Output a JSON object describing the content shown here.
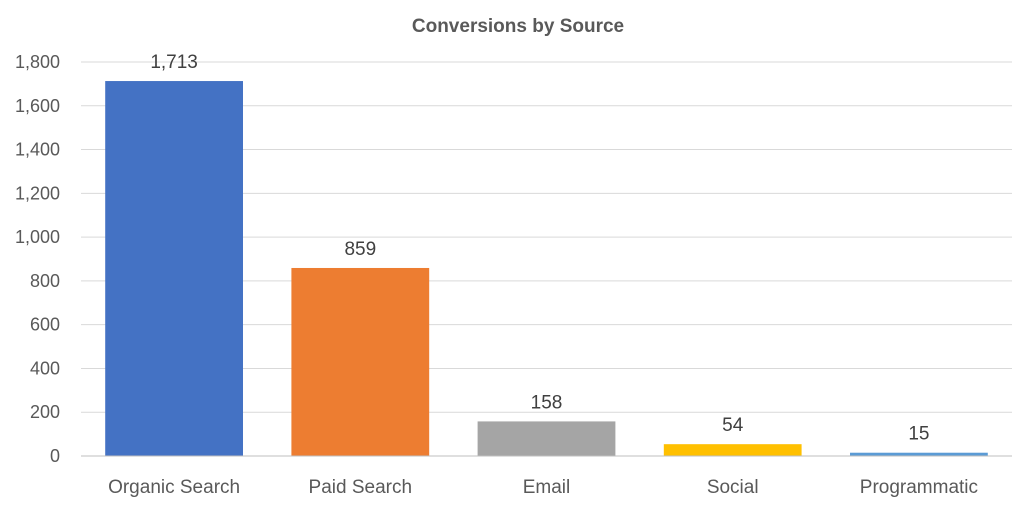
{
  "chart_data": {
    "type": "bar",
    "title": "Conversions by Source",
    "xlabel": "",
    "ylabel": "",
    "categories": [
      "Organic Search",
      "Paid Search",
      "Email",
      "Social",
      "Programmatic"
    ],
    "values": [
      1713,
      859,
      158,
      54,
      15
    ],
    "value_labels": [
      "1,713",
      "859",
      "158",
      "54",
      "15"
    ],
    "colors": [
      "#4472c4",
      "#ed7d31",
      "#a5a5a5",
      "#ffc000",
      "#5b9bd5"
    ],
    "ylim": [
      0,
      1800
    ],
    "yticks": [
      0,
      200,
      400,
      600,
      800,
      1000,
      1200,
      1400,
      1600,
      1800
    ],
    "ytick_labels": [
      "0",
      "200",
      "400",
      "600",
      "800",
      "1,000",
      "1,200",
      "1,400",
      "1,600",
      "1,800"
    ],
    "grid": true,
    "legend": "none"
  }
}
